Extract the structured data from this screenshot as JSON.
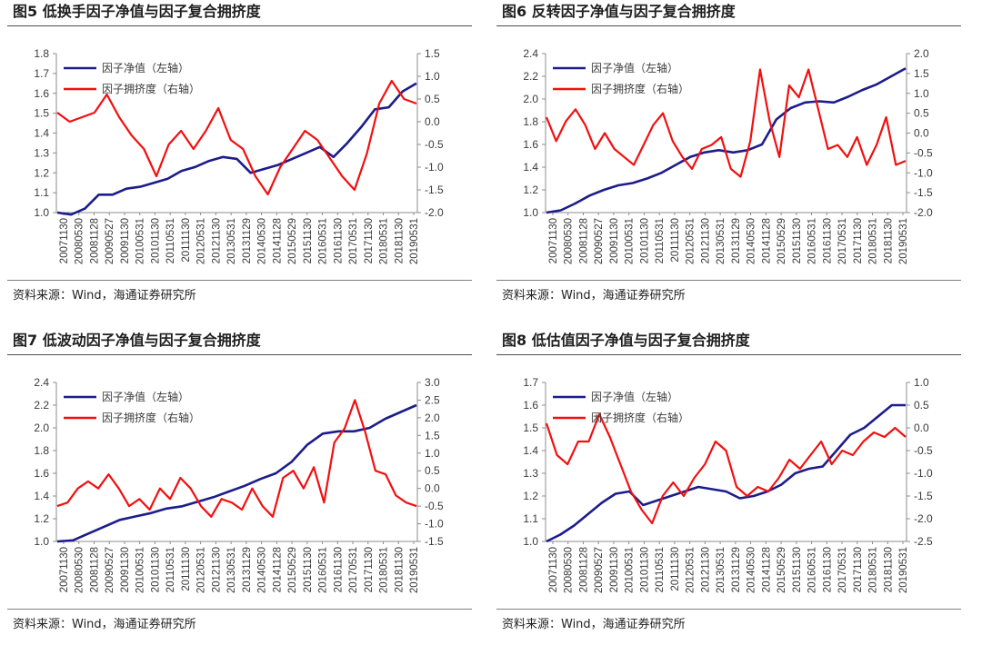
{
  "panels": [
    {
      "title": "图5  低换手因子净值与因子复合拥挤度",
      "source": "资料来源：Wind，海通证券研究所"
    },
    {
      "title": "图6  反转因子净值与因子复合拥挤度",
      "source": "资料来源：Wind，海通证券研究所"
    },
    {
      "title": "图7  低波动因子净值与因子复合拥挤度",
      "source": "资料来源：Wind，海通证券研究所"
    },
    {
      "title": "图8  低估值因子净值与因子复合拥挤度",
      "source": "资料来源：Wind，海通证券研究所"
    }
  ],
  "colors": {
    "net_value": "#1c1c8c",
    "crowding": "#f20f0f",
    "axis": "#8c8c8c"
  },
  "chart_data": [
    {
      "type": "line",
      "title": "低换手因子净值与因子复合拥挤度",
      "x_ticks": [
        "20071130",
        "20080530",
        "20081128",
        "20090527",
        "20091130",
        "20100531",
        "20101130",
        "20110531",
        "20111130",
        "20120531",
        "20121130",
        "20130531",
        "20131129",
        "20140530",
        "20141128",
        "20150529",
        "20151130",
        "20160531",
        "20161130",
        "20170531",
        "20171130",
        "20180531",
        "20181130",
        "20190531"
      ],
      "ylim_left": [
        1.0,
        1.8
      ],
      "yticks_left": [
        "1.0",
        "1.1",
        "1.2",
        "1.3",
        "1.4",
        "1.5",
        "1.6",
        "1.7",
        "1.8"
      ],
      "ylim_right": [
        -2.0,
        1.5
      ],
      "yticks_right": [
        "-2.0",
        "-1.5",
        "-1.0",
        "-0.5",
        "0.0",
        "0.5",
        "1.0",
        "1.5"
      ],
      "legend_placement": "top-left",
      "series": [
        {
          "name": "因子净值（左轴）",
          "axis": "left",
          "values": [
            1.0,
            0.99,
            1.02,
            1.09,
            1.09,
            1.12,
            1.13,
            1.15,
            1.17,
            1.21,
            1.23,
            1.26,
            1.28,
            1.27,
            1.2,
            1.22,
            1.24,
            1.27,
            1.3,
            1.33,
            1.28,
            1.35,
            1.43,
            1.52,
            1.53,
            1.61,
            1.65
          ]
        },
        {
          "name": "因子拥挤度（右轴）",
          "axis": "right",
          "values": [
            0.2,
            0.0,
            0.1,
            0.2,
            0.6,
            0.1,
            -0.3,
            -0.6,
            -1.2,
            -0.5,
            -0.2,
            -0.6,
            -0.2,
            0.3,
            -0.4,
            -0.6,
            -1.2,
            -1.6,
            -1.0,
            -0.6,
            -0.2,
            -0.4,
            -0.8,
            -1.2,
            -1.5,
            -0.7,
            0.4,
            0.9,
            0.5,
            0.4
          ]
        }
      ]
    },
    {
      "type": "line",
      "title": "反转因子净值与因子复合拥挤度",
      "x_ticks": [
        "20071130",
        "20080530",
        "20081128",
        "20090527",
        "20091130",
        "20100531",
        "20101130",
        "20110531",
        "20111130",
        "20120531",
        "20121130",
        "20130531",
        "20131129",
        "20140530",
        "20141128",
        "20150529",
        "20151130",
        "20160531",
        "20161130",
        "20170531",
        "20171130",
        "20180531",
        "20181130",
        "20190531"
      ],
      "ylim_left": [
        1.0,
        2.4
      ],
      "yticks_left": [
        "1.0",
        "1.2",
        "1.4",
        "1.6",
        "1.8",
        "2.0",
        "2.2",
        "2.4"
      ],
      "ylim_right": [
        -2.0,
        2.0
      ],
      "yticks_right": [
        "-2.0",
        "-1.5",
        "-1.0",
        "-0.5",
        "0.0",
        "0.5",
        "1.0",
        "1.5",
        "2.0"
      ],
      "legend_placement": "top-left",
      "series": [
        {
          "name": "因子净值（左轴）",
          "axis": "left",
          "values": [
            1.0,
            1.02,
            1.08,
            1.15,
            1.2,
            1.24,
            1.26,
            1.3,
            1.35,
            1.42,
            1.49,
            1.53,
            1.55,
            1.53,
            1.55,
            1.6,
            1.82,
            1.92,
            1.97,
            1.98,
            1.97,
            2.02,
            2.08,
            2.13,
            2.2,
            2.27
          ]
        },
        {
          "name": "因子拥挤度（右轴）",
          "axis": "right",
          "values": [
            0.4,
            -0.2,
            0.3,
            0.6,
            0.2,
            -0.4,
            0.0,
            -0.4,
            -0.6,
            -0.8,
            -0.3,
            0.2,
            0.5,
            -0.2,
            -0.6,
            -0.9,
            -0.4,
            -0.3,
            -0.1,
            -0.9,
            -1.1,
            -0.2,
            1.6,
            0.3,
            -0.6,
            1.2,
            0.9,
            1.6,
            0.6,
            -0.4,
            -0.3,
            -0.6,
            -0.1,
            -0.8,
            -0.3,
            0.4,
            -0.8,
            -0.7
          ]
        }
      ]
    },
    {
      "type": "line",
      "title": "低波动因子净值与因子复合拥挤度",
      "x_ticks": [
        "20071130",
        "20080530",
        "20081128",
        "20090527",
        "20091130",
        "20100531",
        "20101130",
        "20110531",
        "20111130",
        "20120531",
        "20121130",
        "20130531",
        "20131129",
        "20140530",
        "20141128",
        "20150529",
        "20151130",
        "20160531",
        "20161130",
        "20170531",
        "20171130",
        "20180531",
        "20181130",
        "20190531"
      ],
      "ylim_left": [
        1.0,
        2.4
      ],
      "yticks_left": [
        "1.0",
        "1.2",
        "1.4",
        "1.6",
        "1.8",
        "2.0",
        "2.2",
        "2.4"
      ],
      "ylim_right": [
        -1.5,
        3.0
      ],
      "yticks_right": [
        "-1.5",
        "-1.0",
        "-0.5",
        "0.0",
        "0.5",
        "1.0",
        "1.5",
        "2.0",
        "2.5",
        "3.0"
      ],
      "legend_placement": "top-left",
      "series": [
        {
          "name": "因子净值（左轴）",
          "axis": "left",
          "values": [
            1.0,
            1.01,
            1.07,
            1.13,
            1.19,
            1.22,
            1.25,
            1.29,
            1.31,
            1.35,
            1.39,
            1.44,
            1.49,
            1.55,
            1.6,
            1.7,
            1.85,
            1.95,
            1.97,
            1.97,
            2.0,
            2.08,
            2.14,
            2.2
          ]
        },
        {
          "name": "因子拥挤度（右轴）",
          "axis": "right",
          "values": [
            -0.5,
            -0.4,
            0.0,
            0.2,
            0.0,
            0.4,
            0.0,
            -0.5,
            -0.3,
            -0.6,
            0.0,
            -0.3,
            0.3,
            0.0,
            -0.5,
            -0.8,
            -0.3,
            -0.4,
            -0.6,
            0.0,
            -0.5,
            -0.8,
            0.3,
            0.5,
            0.0,
            0.6,
            -0.4,
            1.3,
            1.7,
            2.5,
            1.6,
            0.5,
            0.4,
            -0.2,
            -0.4,
            -0.5
          ]
        }
      ]
    },
    {
      "type": "line",
      "title": "低估值因子净值与因子复合拥挤度",
      "x_ticks": [
        "20071130",
        "20080530",
        "20081128",
        "20090527",
        "20091130",
        "20100531",
        "20101130",
        "20110531",
        "20111130",
        "20120531",
        "20121130",
        "20130531",
        "20131129",
        "20140530",
        "20141128",
        "20150529",
        "20151130",
        "20160531",
        "20161130",
        "20170531",
        "20171130",
        "20180531",
        "20181130",
        "20190531"
      ],
      "ylim_left": [
        1.0,
        1.7
      ],
      "yticks_left": [
        "1.0",
        "1.1",
        "1.2",
        "1.3",
        "1.4",
        "1.5",
        "1.6",
        "1.7"
      ],
      "ylim_right": [
        -2.5,
        1.0
      ],
      "yticks_right": [
        "-2.5",
        "-2.0",
        "-1.5",
        "-1.0",
        "-0.5",
        "0.0",
        "0.5",
        "1.0"
      ],
      "legend_placement": "top-left",
      "series": [
        {
          "name": "因子净值（左轴）",
          "axis": "left",
          "values": [
            1.0,
            1.03,
            1.07,
            1.12,
            1.17,
            1.21,
            1.22,
            1.16,
            1.18,
            1.2,
            1.22,
            1.24,
            1.23,
            1.22,
            1.19,
            1.2,
            1.22,
            1.25,
            1.3,
            1.32,
            1.33,
            1.4,
            1.47,
            1.5,
            1.55,
            1.6,
            1.6
          ]
        },
        {
          "name": "因子拥挤度（右轴）",
          "axis": "right",
          "values": [
            0.1,
            -0.6,
            -0.8,
            -0.3,
            -0.3,
            0.3,
            -0.2,
            -0.8,
            -1.4,
            -1.8,
            -2.1,
            -1.5,
            -1.2,
            -1.5,
            -1.1,
            -0.8,
            -0.3,
            -0.5,
            -1.3,
            -1.5,
            -1.3,
            -1.4,
            -1.1,
            -0.7,
            -0.9,
            -0.6,
            -0.3,
            -0.8,
            -0.5,
            -0.6,
            -0.3,
            -0.1,
            -0.2,
            0.0,
            -0.2
          ]
        }
      ]
    }
  ]
}
